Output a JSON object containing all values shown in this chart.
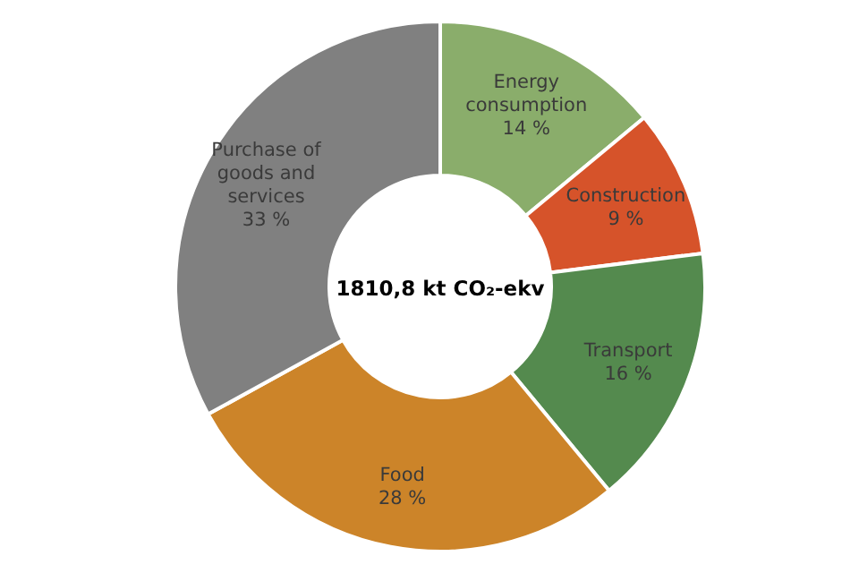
{
  "chart_data": {
    "type": "donut",
    "categories": [
      "Energy consumption",
      "Construction",
      "Transport",
      "Food",
      "Purchase of goods and services"
    ],
    "values": [
      14,
      9,
      16,
      28,
      33
    ],
    "value_labels": [
      "14 %",
      "9 %",
      "16 %",
      "28 %",
      "33 %"
    ],
    "colors": [
      "#8aad6b",
      "#d6532a",
      "#548a4e",
      "#cc8429",
      "#808080"
    ],
    "annotations": [
      "1810,8 kt CO₂-ekv"
    ],
    "legend": false
  }
}
